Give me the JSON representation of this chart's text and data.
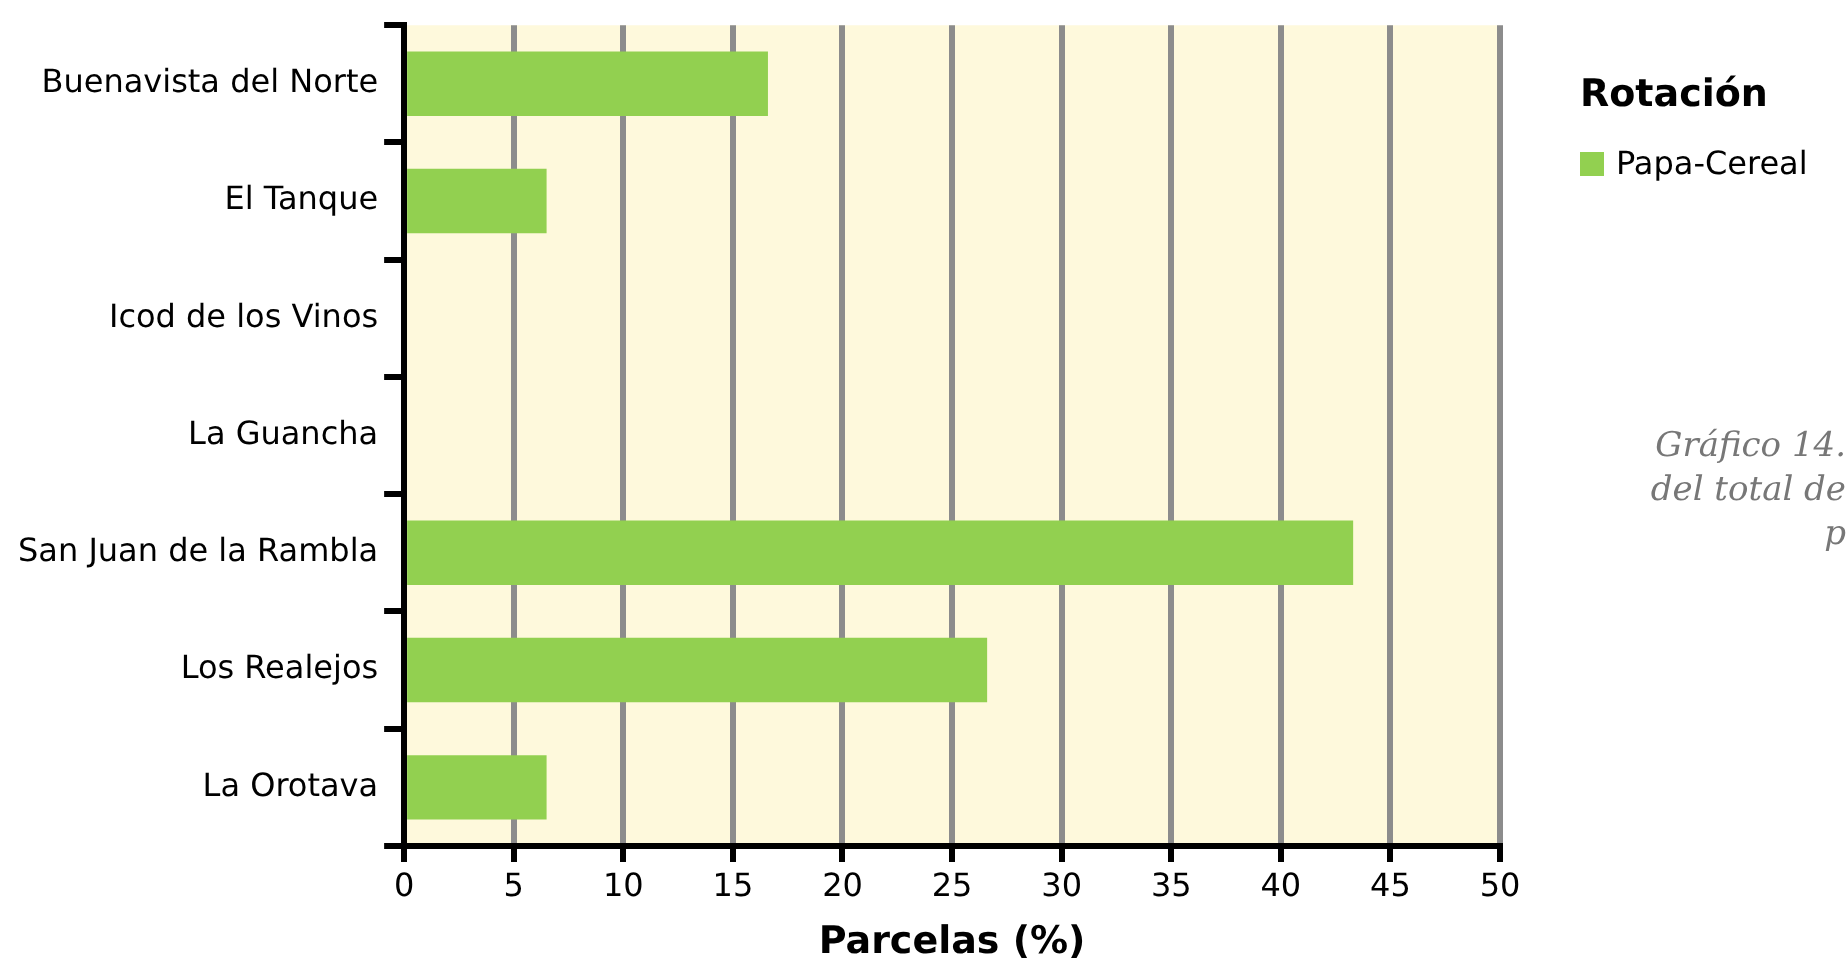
{
  "chart_data": {
    "type": "bar",
    "orientation": "horizontal",
    "xlabel": "Parcelas (%)",
    "legend_title": "Rotación",
    "legend": "right",
    "grid": "x",
    "categories": [
      "Buenavista del Norte",
      "El Tanque",
      "Icod de los Vinos",
      "La Guancha",
      "San Juan de la Rambla",
      "Los Realejos",
      "La Orotava"
    ],
    "series": [
      {
        "name": "Papa-Cereal",
        "color": "#92d050",
        "values": [
          16.6,
          6.5,
          0,
          0,
          43.3,
          26.6,
          6.5
        ]
      }
    ],
    "xlim": [
      0,
      50
    ],
    "xticks": [
      0,
      5,
      10,
      15,
      20,
      25,
      30,
      35,
      40,
      45,
      50
    ],
    "annotations": [
      "Gráfico 14.",
      "del total de",
      "p"
    ]
  }
}
